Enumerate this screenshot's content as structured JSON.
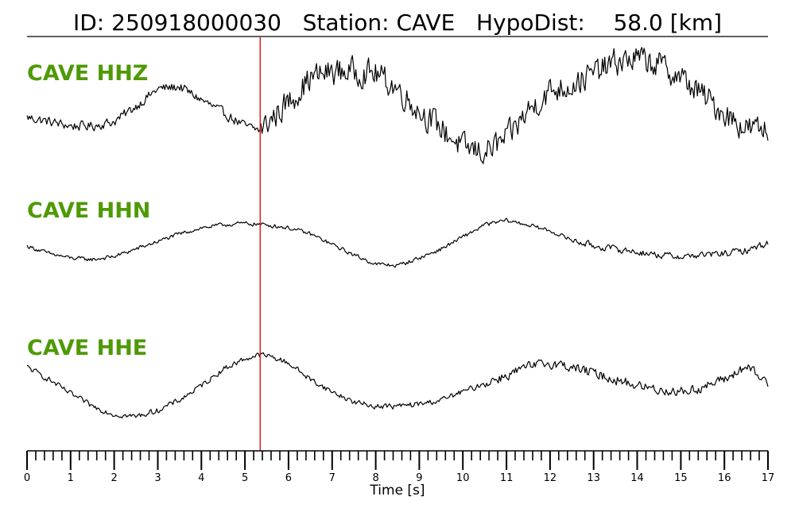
{
  "title": {
    "id_label": "ID:",
    "id_value": "250918000030",
    "station_label": "Station:",
    "station_value": "CAVE",
    "hypodist_label": "HypoDist:",
    "hypodist_value": "58.0",
    "hypodist_unit": "[km]"
  },
  "chart_data": {
    "type": "line",
    "xlabel": "Time [s]",
    "xlim": [
      0,
      17
    ],
    "major_ticks": [
      0,
      1,
      2,
      3,
      4,
      5,
      6,
      7,
      8,
      9,
      10,
      11,
      12,
      13,
      14,
      15,
      16,
      17
    ],
    "minor_tick_step": 0.2,
    "pick_time": 5.35,
    "pick_color": "#e41a1c",
    "label_color": "#4e9a06",
    "series": [
      {
        "name": "CAVE HHZ",
        "x": [
          0,
          0.5,
          1,
          1.5,
          2,
          2.5,
          3,
          3.5,
          4,
          4.5,
          5,
          5.35,
          5.6,
          6,
          6.5,
          7,
          7.5,
          8,
          8.5,
          9,
          9.5,
          10,
          10.5,
          11,
          11.5,
          12,
          12.5,
          13,
          13.5,
          14,
          14.5,
          15,
          15.5,
          16,
          16.5,
          17
        ],
        "y": [
          -0.05,
          -0.15,
          -0.25,
          -0.25,
          -0.15,
          0.2,
          0.6,
          0.65,
          0.35,
          0.05,
          -0.25,
          -0.35,
          -0.1,
          0.3,
          0.85,
          1.0,
          1.0,
          0.95,
          0.6,
          0.1,
          -0.3,
          -0.75,
          -0.85,
          -0.55,
          0.1,
          0.55,
          0.7,
          0.95,
          1.2,
          1.3,
          1.15,
          0.85,
          0.45,
          0.05,
          -0.3,
          -0.35
        ]
      },
      {
        "name": "CAVE HHN",
        "x": [
          0,
          0.5,
          1,
          1.5,
          2,
          2.5,
          3,
          3.5,
          4,
          4.5,
          5,
          5.5,
          6,
          6.5,
          7,
          7.5,
          8,
          8.5,
          9,
          9.5,
          10,
          10.5,
          11,
          11.5,
          12,
          12.5,
          13,
          13.5,
          14,
          14.5,
          15,
          15.5,
          16,
          16.5,
          17
        ],
        "y": [
          -0.05,
          -0.3,
          -0.45,
          -0.5,
          -0.4,
          -0.15,
          0.1,
          0.35,
          0.55,
          0.65,
          0.7,
          0.65,
          0.55,
          0.35,
          0.0,
          -0.35,
          -0.65,
          -0.7,
          -0.45,
          -0.15,
          0.25,
          0.65,
          0.8,
          0.65,
          0.45,
          0.15,
          -0.05,
          -0.15,
          -0.25,
          -0.35,
          -0.4,
          -0.35,
          -0.3,
          -0.2,
          0.05
        ]
      },
      {
        "name": "CAVE HHE",
        "x": [
          0,
          0.5,
          1,
          1.5,
          2,
          2.5,
          3,
          3.5,
          4,
          4.5,
          5,
          5.35,
          5.6,
          6,
          6.5,
          7,
          7.5,
          8,
          8.5,
          9,
          9.5,
          10,
          10.5,
          11,
          11.5,
          12,
          12.5,
          13,
          13.5,
          14,
          14.5,
          15,
          15.5,
          16,
          16.5,
          17
        ],
        "y": [
          0.3,
          0.0,
          -0.35,
          -0.65,
          -0.85,
          -0.9,
          -0.75,
          -0.5,
          -0.15,
          0.25,
          0.5,
          0.6,
          0.55,
          0.4,
          0.0,
          -0.3,
          -0.55,
          -0.65,
          -0.65,
          -0.6,
          -0.5,
          -0.3,
          -0.1,
          0.1,
          0.3,
          0.4,
          0.3,
          0.15,
          0.0,
          -0.15,
          -0.25,
          -0.3,
          -0.2,
          0.0,
          0.3,
          -0.1
        ]
      }
    ]
  }
}
